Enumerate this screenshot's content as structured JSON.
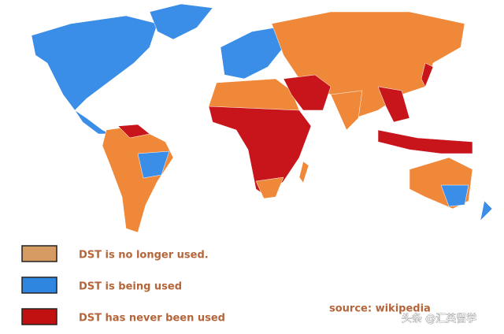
{
  "legend": {
    "items": [
      {
        "label": "DST is no longer used.",
        "color": "#d59b62"
      },
      {
        "label": "DST is being used",
        "color": "#2f86e0"
      },
      {
        "label": "DST has never been used",
        "color": "#c01010"
      }
    ]
  },
  "source": "source: wikipedia",
  "watermark": "头条 @汇英留学"
}
